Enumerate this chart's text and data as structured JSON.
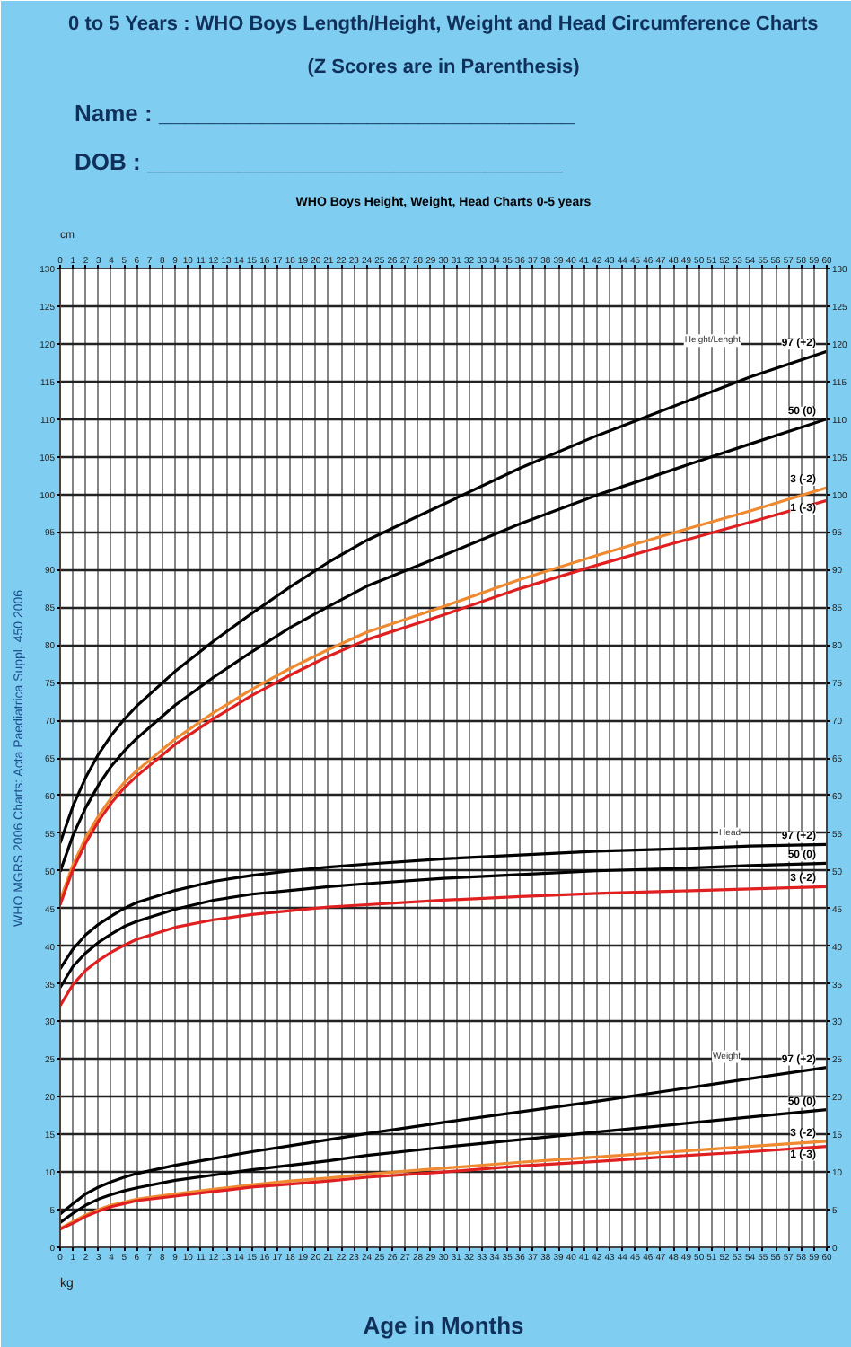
{
  "chart_data": {
    "type": "line",
    "title": "0 to 5 Years : WHO Boys Length/Height, Weight and Head Circumference Charts",
    "subtitle": "(Z Scores are in Parenthesis)",
    "xlabel": "Age in Months",
    "annotations": [
      "WHO Boys Height, Weight, Head Charts 0-5 years",
      "Name : ________________________________",
      "DOB   : ________________________________",
      "WHO MGRS 2006 Charts: Acta Paediatrica Suppl. 450 2006",
      "cm",
      "kg",
      "Height/Lenght",
      "Head",
      "Weight"
    ],
    "x": [
      0,
      1,
      2,
      3,
      4,
      5,
      6,
      9,
      12,
      15,
      18,
      21,
      24,
      30,
      36,
      42,
      48,
      54,
      60
    ],
    "series": [
      {
        "name": "97 (+2)",
        "color": "#000000",
        "values": [
          53.7,
          58.6,
          62.4,
          65.5,
          68.0,
          70.1,
          71.9,
          76.5,
          80.5,
          84.2,
          87.7,
          91.0,
          93.9,
          98.7,
          103.5,
          107.8,
          111.7,
          115.6,
          119.0
        ]
      },
      {
        "name": "50 (0)",
        "color": "#000000",
        "values": [
          49.9,
          54.7,
          58.4,
          61.4,
          63.9,
          65.9,
          67.6,
          72.0,
          75.7,
          79.1,
          82.3,
          85.1,
          87.8,
          91.9,
          96.1,
          99.9,
          103.3,
          106.7,
          110.0
        ]
      },
      {
        "name": "3 (-2)",
        "color": "#f08a30",
        "values": [
          46.1,
          50.8,
          54.4,
          57.3,
          59.7,
          61.7,
          63.3,
          67.5,
          71.0,
          74.1,
          76.9,
          79.4,
          81.7,
          85.1,
          88.7,
          91.9,
          94.9,
          97.8,
          100.9
        ]
      },
      {
        "name": "1 (-3)",
        "color": "#e02020",
        "values": [
          45.5,
          50.2,
          53.7,
          56.6,
          59.0,
          61.0,
          62.6,
          66.8,
          70.2,
          73.3,
          76.0,
          78.5,
          80.7,
          84.0,
          87.5,
          90.6,
          93.5,
          96.3,
          99.2
        ]
      },
      {
        "name": "97 (+2)",
        "color": "#000000",
        "values": [
          37.0,
          39.6,
          41.5,
          42.9,
          44.0,
          45.0,
          45.8,
          47.4,
          48.6,
          49.4,
          50.0,
          50.5,
          50.9,
          51.6,
          52.1,
          52.6,
          52.9,
          53.3,
          53.5
        ]
      },
      {
        "name": "50 (0)",
        "color": "#000000",
        "values": [
          34.5,
          37.3,
          39.1,
          40.5,
          41.6,
          42.6,
          43.3,
          44.9,
          46.1,
          46.9,
          47.4,
          47.9,
          48.3,
          49.0,
          49.5,
          50.0,
          50.3,
          50.7,
          51.0
        ]
      },
      {
        "name": "3 (-2)",
        "color": "#e02020",
        "values": [
          32.1,
          34.9,
          36.8,
          38.1,
          39.2,
          40.1,
          40.9,
          42.5,
          43.5,
          44.2,
          44.7,
          45.2,
          45.5,
          46.1,
          46.6,
          47.0,
          47.3,
          47.6,
          47.9
        ]
      },
      {
        "name": "97 (+2)",
        "color": "#000000",
        "values": [
          4.4,
          5.8,
          7.1,
          8.0,
          8.7,
          9.3,
          9.8,
          10.9,
          11.8,
          12.7,
          13.5,
          14.3,
          15.1,
          16.6,
          18.0,
          19.4,
          20.9,
          22.4,
          23.9
        ]
      },
      {
        "name": "50 (0)",
        "color": "#000000",
        "values": [
          3.3,
          4.5,
          5.6,
          6.4,
          7.0,
          7.5,
          7.9,
          8.9,
          9.6,
          10.3,
          10.9,
          11.5,
          12.2,
          13.3,
          14.3,
          15.3,
          16.3,
          17.3,
          18.3
        ]
      },
      {
        "name": "3 (-2)",
        "color": "#f08a30",
        "values": [
          2.5,
          3.4,
          4.3,
          5.0,
          5.6,
          6.0,
          6.4,
          7.1,
          7.7,
          8.3,
          8.8,
          9.2,
          9.7,
          10.5,
          11.3,
          12.0,
          12.7,
          13.4,
          14.1
        ]
      },
      {
        "name": "1 (-3)",
        "color": "#e02020",
        "values": [
          2.4,
          3.2,
          4.1,
          4.8,
          5.4,
          5.8,
          6.2,
          6.8,
          7.4,
          8.0,
          8.4,
          8.8,
          9.3,
          10.0,
          10.8,
          11.4,
          12.1,
          12.7,
          13.4
        ]
      }
    ],
    "xlim": [
      0,
      60
    ],
    "xticks": [
      0,
      1,
      2,
      3,
      4,
      5,
      6,
      7,
      8,
      9,
      10,
      11,
      12,
      13,
      14,
      15,
      16,
      17,
      18,
      19,
      20,
      21,
      22,
      23,
      24,
      25,
      26,
      27,
      28,
      29,
      30,
      31,
      32,
      33,
      34,
      35,
      36,
      37,
      38,
      39,
      40,
      41,
      42,
      43,
      44,
      45,
      46,
      47,
      48,
      49,
      50,
      51,
      52,
      53,
      54,
      55,
      56,
      57,
      58,
      59,
      60
    ],
    "x2lim": [
      0,
      60
    ],
    "x2ticks": [
      0,
      1,
      2,
      3,
      4,
      5,
      6,
      7,
      8,
      9,
      10,
      11,
      12,
      13,
      14,
      15,
      16,
      17,
      18,
      19,
      20,
      21,
      22,
      23,
      24,
      25,
      26,
      27,
      28,
      29,
      30,
      31,
      32,
      33,
      34,
      35,
      36,
      37,
      38,
      39,
      40,
      41,
      42,
      43,
      44,
      45,
      46,
      47,
      48,
      49,
      50,
      51,
      52,
      53,
      54,
      55,
      56,
      57,
      58,
      59,
      60
    ],
    "ylim": [
      0,
      130
    ],
    "yticks": [
      0,
      5,
      10,
      15,
      20,
      25,
      30,
      35,
      40,
      45,
      50,
      55,
      60,
      65,
      70,
      75,
      80,
      85,
      90,
      95,
      100,
      105,
      110,
      115,
      120,
      125,
      130
    ],
    "y2lim": [
      0,
      130
    ],
    "y2ticks": [
      0,
      5,
      10,
      15,
      20,
      25,
      30,
      35,
      40,
      45,
      50,
      55,
      60,
      65,
      70,
      75,
      80,
      85,
      90,
      95,
      100,
      105,
      110,
      115,
      120,
      125,
      130
    ],
    "grid": true,
    "marker": "none",
    "line_style": "solid"
  }
}
